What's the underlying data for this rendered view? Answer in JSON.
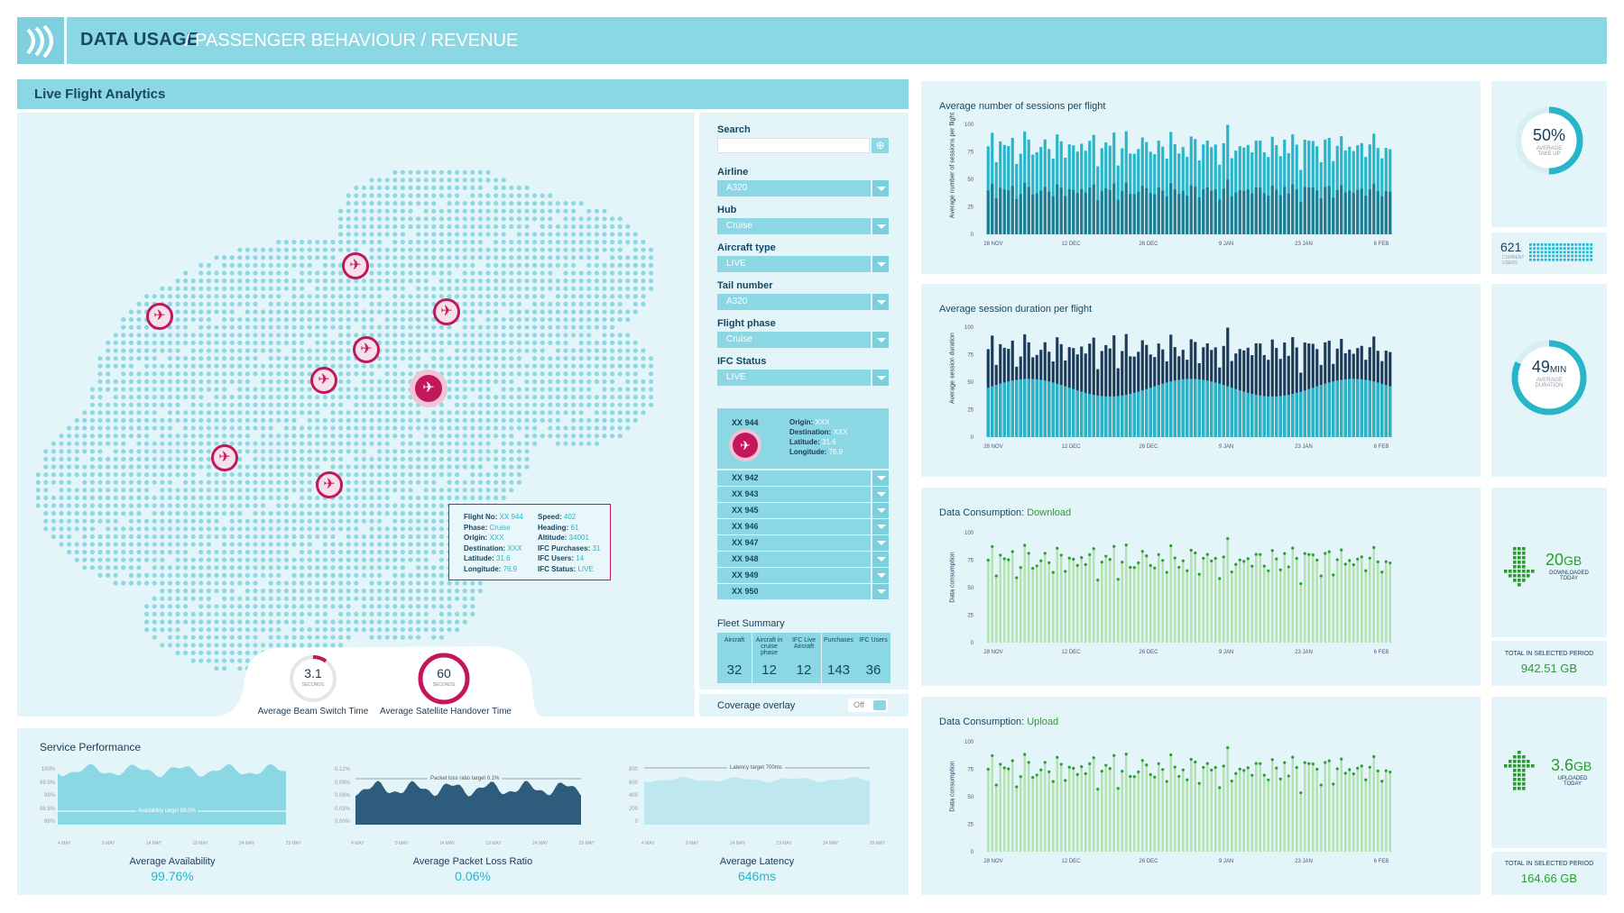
{
  "header": {
    "title": "DATA USAGE",
    "breadcrumb": "/ PASSENGER BEHAVIOUR / REVENUE"
  },
  "map_panel": {
    "title": "Live Flight Analytics",
    "tooltip": {
      "flight_no_label": "Flight No:",
      "flight_no": "XX 944",
      "phase_label": "Phase:",
      "phase": "Cruise",
      "origin_label": "Origin:",
      "origin": "XXX",
      "destination_label": "Destination:",
      "destination": "XXX",
      "latitude_label": "Latitude:",
      "latitude": "31.6",
      "longitude_label": "Longitude:",
      "longitude": "76.9",
      "speed_label": "Speed:",
      "speed": "402",
      "heading_label": "Heading:",
      "heading": "61",
      "altitude_label": "Altitude:",
      "altitude": "34001",
      "purchases_label": "IFC Purchases:",
      "purchases": "31",
      "users_label": "IFC Users:",
      "users": "14",
      "status_label": "IFC Status:",
      "status": "LIVE"
    },
    "beam": {
      "value": "3.1",
      "unit": "SECONDS",
      "label": "Average Beam Switch Time",
      "fraction": 0.1
    },
    "handover": {
      "value": "60",
      "unit": "SECONDS",
      "label": "Average Satellite Handover Time",
      "fraction": 1.0
    }
  },
  "filters": {
    "search_label": "Search",
    "airline": {
      "label": "Airline",
      "value": "A320"
    },
    "hub": {
      "label": "Hub",
      "value": "Cruise"
    },
    "aircraft_type": {
      "label": "Aircraft type",
      "value": "LIVE"
    },
    "tail_number": {
      "label": "Tail number",
      "value": "A320"
    },
    "flight_phase": {
      "label": "Flight phase",
      "value": "Cruise"
    },
    "ifc_status": {
      "label": "IFC Status",
      "value": "LIVE"
    }
  },
  "selected_flight": {
    "id": "XX 944",
    "origin_label": "Origin:",
    "origin": "XXX",
    "destination_label": "Destination:",
    "destination": "XXX",
    "latitude_label": "Latitude:",
    "latitude": "31.6",
    "longitude_label": "Longitude:",
    "longitude": "76.9"
  },
  "flights": [
    "XX 942",
    "XX 943",
    "XX 945",
    "XX 946",
    "XX 947",
    "XX 948",
    "XX 949",
    "XX 950"
  ],
  "fleet_summary": {
    "title": "Fleet Summary",
    "items": [
      {
        "label": "Aircraft",
        "value": "32"
      },
      {
        "label": "Aircraft in cruise phase",
        "value": "12"
      },
      {
        "label": "IFC Live Aircraft",
        "value": "12"
      },
      {
        "label": "Purchases",
        "value": "143"
      },
      {
        "label": "IFC Users",
        "value": "36"
      }
    ]
  },
  "coverage": {
    "label": "Coverage overlay",
    "state": "Off"
  },
  "service": {
    "title": "Service Performance",
    "availability": {
      "label": "Average Availability",
      "value": "99.76%",
      "target": "Availability target 98.5%",
      "yticks": [
        "100%",
        "99.5%",
        "99%",
        "98.5%",
        "98%"
      ]
    },
    "packet_loss": {
      "label": "Average Packet Loss Ratio",
      "value": "0.06%",
      "target": "Packet loss ratio target 0.1%",
      "yticks": [
        "0.12%",
        "0.09%",
        "0.06%",
        "0.03%",
        "0.00%"
      ]
    },
    "latency": {
      "label": "Average Latency",
      "value": "646ms",
      "target": "Latency target 700ms",
      "yticks": [
        "800",
        "600",
        "400",
        "200",
        "0"
      ]
    },
    "xticks": [
      "4 MAY",
      "9 MAY",
      "14 MAY",
      "19 MAY",
      "24 MAY",
      "29 MAY"
    ]
  },
  "charts": {
    "sessions": {
      "title": "Average number of sessions per flight",
      "ylabel": "Average number of sessions per flight"
    },
    "duration": {
      "title": "Average session duration per flight",
      "ylabel": "Average session duration"
    },
    "download": {
      "title_prefix": "Data Consumption: ",
      "title_accent": "Download",
      "ylabel": "Data consumption"
    },
    "upload": {
      "title_prefix": "Data Consumption: ",
      "title_accent": "Upload",
      "ylabel": "Data consumption"
    }
  },
  "chart_data": [
    {
      "type": "bar",
      "title": "Average number of sessions per flight",
      "ylabel": "Average number of sessions per flight",
      "ylim": [
        0,
        100
      ],
      "yticks": [
        0,
        25,
        50,
        75,
        100
      ],
      "xticks": [
        "28 NOV",
        "12 DEC",
        "26 DEC",
        "9 JAN",
        "23 JAN",
        "6 FEB"
      ],
      "n": 100,
      "base": 82,
      "amp": 14
    },
    {
      "type": "bar",
      "title": "Average session duration per flight",
      "ylabel": "Average session duration",
      "ylim": [
        0,
        100
      ],
      "yticks": [
        0,
        25,
        50,
        75,
        100
      ],
      "xticks": [
        "28 NOV",
        "12 DEC",
        "26 DEC",
        "9 JAN",
        "23 JAN",
        "6 FEB"
      ],
      "n": 100,
      "base": 82,
      "amp": 14
    },
    {
      "type": "scatter",
      "title": "Data Consumption: Download",
      "ylabel": "Data consumption",
      "ylim": [
        0,
        100
      ],
      "yticks": [
        0,
        25,
        50,
        75,
        100
      ],
      "xticks": [
        "28 NOV",
        "12 DEC",
        "26 DEC",
        "9 JAN",
        "23 JAN",
        "6 FEB"
      ],
      "n": 100,
      "base": 82,
      "amp": 14
    },
    {
      "type": "scatter",
      "title": "Data Consumption: Upload",
      "ylabel": "Data consumption",
      "ylim": [
        0,
        100
      ],
      "yticks": [
        0,
        25,
        50,
        75,
        100
      ],
      "xticks": [
        "28 NOV",
        "12 DEC",
        "26 DEC",
        "9 JAN",
        "23 JAN",
        "6 FEB"
      ],
      "n": 100,
      "base": 82,
      "amp": 14
    }
  ],
  "kpis": {
    "take_up": {
      "value": "50%",
      "caption": "AVERAGE TAKE UP",
      "fraction": 0.5
    },
    "current_users": {
      "value": "621",
      "caption": "CURRENT USERS"
    },
    "duration": {
      "value": "49",
      "unit": "MIN",
      "caption": "AVERAGE DURATION",
      "fraction": 0.82
    },
    "downloaded": {
      "value": "20",
      "unit": "GB",
      "caption": "DOWNLOADED TODAY",
      "total_label": "TOTAL IN SELECTED PERIOD",
      "total": "942.51 GB"
    },
    "uploaded": {
      "value": "3.6",
      "unit": "GB",
      "caption": "UPLOADED TODAY",
      "total_label": "TOTAL IN SELECTED PERIOD",
      "total": "164.66 GB"
    }
  },
  "colors": {
    "accent": "#8bd7e3",
    "panel": "#e4f5f9",
    "navy": "#164763",
    "teal": "#27b5c9",
    "magenta": "#c2185b",
    "green": "#2a9d2f"
  }
}
